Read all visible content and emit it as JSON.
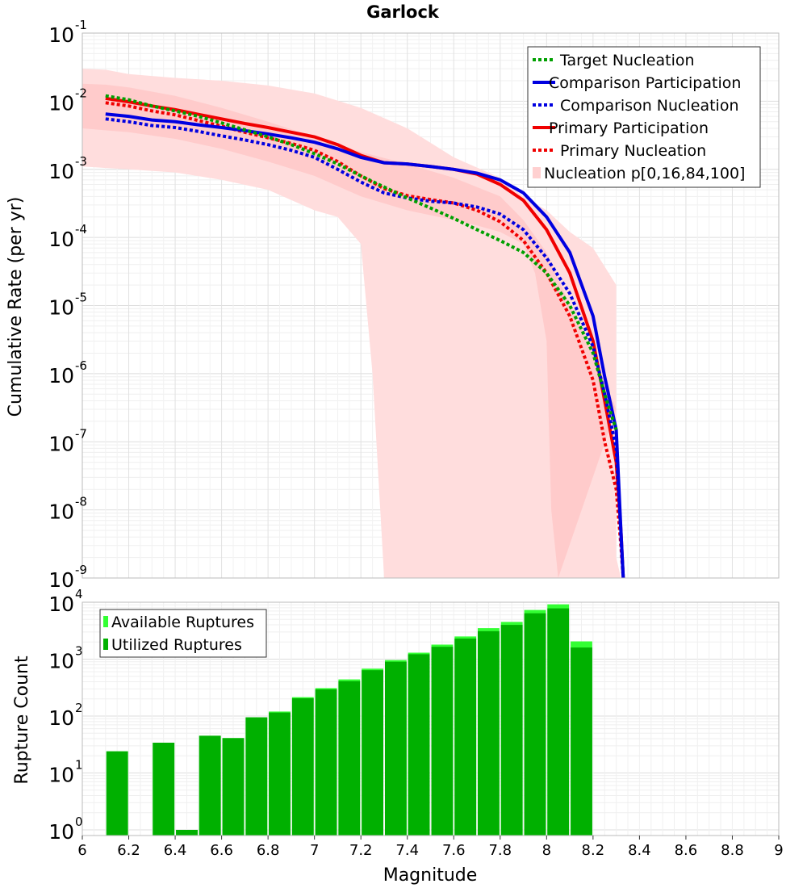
{
  "chart_data": [
    {
      "type": "line",
      "title": "Garlock",
      "xlabel": "",
      "ylabel": "Cumulative Rate (per yr)",
      "xlim": [
        6,
        9
      ],
      "ylim_exponent": [
        -9,
        -1
      ],
      "y_tick_base": "10",
      "yscale": "log",
      "grid": true,
      "legend_position": "top-right",
      "series": [
        {
          "name": "Target Nucleation",
          "style": "dotted",
          "color": "#00a000",
          "x": [
            6.1,
            6.2,
            6.3,
            6.4,
            6.5,
            6.6,
            6.7,
            6.8,
            6.9,
            7.0,
            7.1,
            7.2,
            7.3,
            7.4,
            7.5,
            7.6,
            7.7,
            7.8,
            7.9,
            8.0,
            8.1,
            8.2,
            8.25,
            8.3
          ],
          "y": [
            0.012,
            0.0105,
            0.0085,
            0.0072,
            0.006,
            0.0048,
            0.0038,
            0.003,
            0.0023,
            0.0017,
            0.0012,
            0.0008,
            0.00055,
            0.00038,
            0.00027,
            0.00019,
            0.00013,
            9e-05,
            6e-05,
            3e-05,
            1e-05,
            2e-06,
            5e-07,
            1.5e-07
          ]
        },
        {
          "name": "Comparison Participation",
          "style": "solid",
          "color": "#0000e0",
          "x": [
            6.1,
            6.2,
            6.3,
            6.4,
            6.5,
            6.6,
            6.7,
            6.8,
            6.9,
            7.0,
            7.1,
            7.2,
            7.3,
            7.4,
            7.5,
            7.6,
            7.7,
            7.8,
            7.9,
            8.0,
            8.1,
            8.2,
            8.25,
            8.3,
            8.32,
            8.33
          ],
          "y": [
            0.0065,
            0.006,
            0.0053,
            0.005,
            0.0045,
            0.0041,
            0.0037,
            0.0033,
            0.0029,
            0.0025,
            0.002,
            0.0015,
            0.00125,
            0.0012,
            0.0011,
            0.001,
            0.00088,
            0.0007,
            0.00045,
            0.0002,
            6e-05,
            7e-06,
            9e-07,
            1.5e-07,
            5e-09,
            1e-09
          ]
        },
        {
          "name": "Comparison Nucleation",
          "style": "dotted",
          "color": "#0000e0",
          "x": [
            6.1,
            6.2,
            6.3,
            6.4,
            6.5,
            6.6,
            6.7,
            6.8,
            6.9,
            7.0,
            7.1,
            7.2,
            7.3,
            7.4,
            7.5,
            7.6,
            7.7,
            7.8,
            7.9,
            8.0,
            8.1,
            8.2,
            8.25,
            8.3,
            8.32,
            8.33
          ],
          "y": [
            0.0055,
            0.005,
            0.0044,
            0.0041,
            0.0036,
            0.0031,
            0.0027,
            0.0023,
            0.0019,
            0.0015,
            0.001,
            0.00065,
            0.00045,
            0.00038,
            0.00034,
            0.00032,
            0.00028,
            0.00022,
            0.00013,
            5e-05,
            1.5e-05,
            2.5e-06,
            5e-07,
            8e-08,
            4e-09,
            1e-09
          ]
        },
        {
          "name": "Primary Participation",
          "style": "solid",
          "color": "#f00000",
          "x": [
            6.1,
            6.2,
            6.3,
            6.4,
            6.5,
            6.6,
            6.7,
            6.8,
            6.9,
            7.0,
            7.1,
            7.2,
            7.3,
            7.4,
            7.5,
            7.6,
            7.7,
            7.8,
            7.9,
            8.0,
            8.1,
            8.2,
            8.25,
            8.3,
            8.32,
            8.33
          ],
          "y": [
            0.011,
            0.0098,
            0.0085,
            0.0075,
            0.0064,
            0.0055,
            0.0047,
            0.0041,
            0.0035,
            0.003,
            0.0023,
            0.0016,
            0.00125,
            0.0012,
            0.0011,
            0.001,
            0.00085,
            0.0006,
            0.00035,
            0.00013,
            3e-05,
            3e-06,
            4e-07,
            5e-08,
            5e-09,
            1e-09
          ]
        },
        {
          "name": "Primary Nucleation",
          "style": "dotted",
          "color": "#f00000",
          "x": [
            6.1,
            6.2,
            6.3,
            6.4,
            6.5,
            6.6,
            6.7,
            6.8,
            6.9,
            7.0,
            7.1,
            7.2,
            7.3,
            7.4,
            7.5,
            7.6,
            7.7,
            7.8,
            7.9,
            8.0,
            8.1,
            8.2,
            8.25,
            8.3,
            8.32,
            8.33
          ],
          "y": [
            0.0095,
            0.0085,
            0.0072,
            0.0063,
            0.0052,
            0.0043,
            0.0035,
            0.0029,
            0.0024,
            0.0019,
            0.0013,
            0.0008,
            0.00052,
            0.00041,
            0.00036,
            0.00032,
            0.00025,
            0.00017,
            9e-05,
            3e-05,
            7e-06,
            8e-07,
            1e-07,
            2e-08,
            3e-09,
            1e-09
          ]
        }
      ],
      "bands": {
        "name": "Nucleation p[0,16,84,100]",
        "color": "#ffdddd",
        "inner_color": "#ffc0c0",
        "outer_upper": {
          "x": [
            6.0,
            6.1,
            6.2,
            6.4,
            6.6,
            6.8,
            7.0,
            7.2,
            7.4,
            7.6,
            7.8,
            7.9,
            8.0,
            8.1,
            8.2,
            8.3
          ],
          "y": [
            0.03,
            0.029,
            0.025,
            0.022,
            0.02,
            0.017,
            0.013,
            0.008,
            0.004,
            0.0015,
            0.00075,
            0.0004,
            0.00025,
            0.00012,
            7e-05,
            2e-05
          ]
        },
        "outer_lower": {
          "x": [
            6.0,
            6.2,
            6.4,
            6.6,
            6.8,
            7.0,
            7.1,
            7.2,
            7.25,
            7.3
          ],
          "y": [
            0.0011,
            0.001,
            0.0009,
            0.0007,
            0.0005,
            0.00025,
            0.0002,
            8e-05,
            1e-06,
            1e-09
          ]
        },
        "inner_upper": {
          "x": [
            6.0,
            6.1,
            6.2,
            6.4,
            6.6,
            6.8,
            7.0,
            7.2,
            7.4,
            7.6,
            7.8,
            7.9,
            8.0,
            8.05,
            8.1,
            8.2,
            8.3
          ],
          "y": [
            0.018,
            0.0175,
            0.016,
            0.012,
            0.008,
            0.005,
            0.003,
            0.0018,
            0.0012,
            0.00075,
            0.0004,
            0.00018,
            6e-05,
            2.5e-05,
            1e-05,
            2e-06,
            3e-07
          ]
        },
        "inner_lower": {
          "x": [
            6.0,
            6.2,
            6.4,
            6.6,
            6.8,
            7.0,
            7.2,
            7.4,
            7.6,
            7.7,
            7.8,
            7.9,
            7.95,
            8.0,
            8.02,
            8.05
          ],
          "y": [
            0.004,
            0.0035,
            0.0028,
            0.002,
            0.0013,
            0.0008,
            0.0004,
            0.00025,
            0.00018,
            0.00015,
            0.00012,
            8e-05,
            3e-05,
            3e-06,
            1e-08,
            1e-09
          ]
        }
      }
    },
    {
      "type": "bar",
      "title": "",
      "xlabel": "Magnitude",
      "ylabel": "Rupture Count",
      "xlim": [
        6,
        9
      ],
      "ylim_exponent": [
        0,
        4
      ],
      "y_tick_base": "10",
      "yscale": "log",
      "grid": true,
      "legend_position": "top-left",
      "x_ticks": [
        "6",
        "6.2",
        "6.4",
        "6.6",
        "6.8",
        "7",
        "7.2",
        "7.4",
        "7.6",
        "7.8",
        "8",
        "8.2",
        "8.4",
        "8.6",
        "8.8",
        "9"
      ],
      "bin_centers": [
        6.15,
        6.35,
        6.45,
        6.55,
        6.65,
        6.75,
        6.85,
        6.95,
        7.05,
        7.15,
        7.25,
        7.35,
        7.45,
        7.55,
        7.65,
        7.75,
        7.85,
        7.95,
        8.05,
        8.15
      ],
      "series": [
        {
          "name": "Available Ruptures",
          "color": "#33ff33",
          "values": [
            24,
            34,
            1,
            45,
            41,
            95,
            120,
            215,
            310,
            440,
            680,
            960,
            1300,
            1800,
            2500,
            3500,
            4500,
            7300,
            9200,
            2050
          ]
        },
        {
          "name": "Utilized Ruptures",
          "color": "#00b000",
          "values": [
            24,
            34,
            1,
            45,
            41,
            95,
            115,
            205,
            295,
            410,
            640,
            900,
            1220,
            1650,
            2300,
            3100,
            4000,
            6400,
            7800,
            1600
          ]
        }
      ]
    }
  ]
}
